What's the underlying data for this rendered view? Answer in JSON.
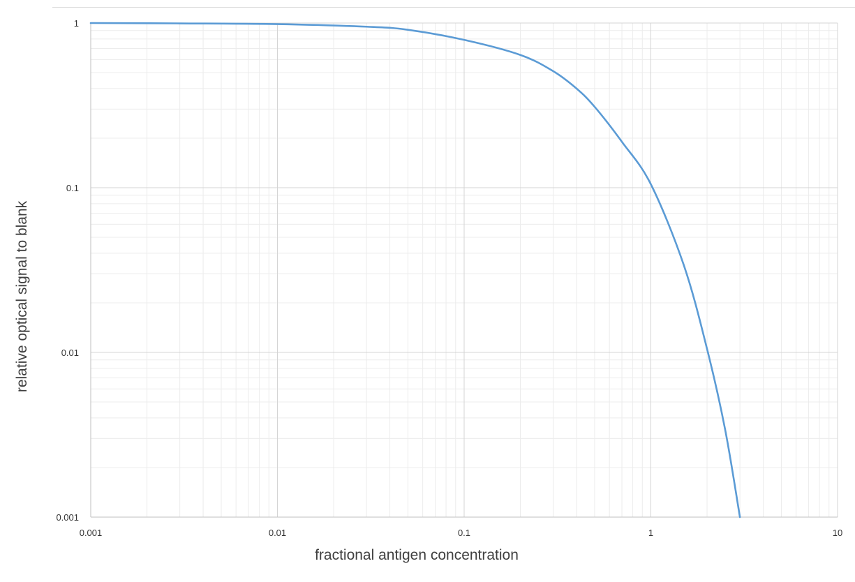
{
  "chart_data": {
    "type": "line",
    "title": "",
    "xlabel": "fractional antigen concentration",
    "ylabel": "relative optical signal to blank",
    "xscale": "log",
    "yscale": "log",
    "xlim": [
      0.001,
      10
    ],
    "ylim": [
      0.001,
      1
    ],
    "x_ticks": [
      "0.001",
      "0.01",
      "0.1",
      "1",
      "10"
    ],
    "y_ticks": [
      "1",
      "0.1",
      "0.01",
      "0.001"
    ],
    "grid": "major and minor",
    "legend": "none",
    "series": [
      {
        "color": "#5b9bd5",
        "x": [
          0.001,
          0.003,
          0.01,
          0.03,
          0.05,
          0.1,
          0.2,
          0.3,
          0.4,
          0.5,
          0.7,
          1.0,
          1.5,
          2.0,
          2.5,
          3.0
        ],
        "y": [
          1.0,
          0.995,
          0.985,
          0.95,
          0.91,
          0.79,
          0.64,
          0.51,
          0.4,
          0.31,
          0.19,
          0.105,
          0.034,
          0.0105,
          0.0034,
          0.001
        ]
      }
    ]
  }
}
